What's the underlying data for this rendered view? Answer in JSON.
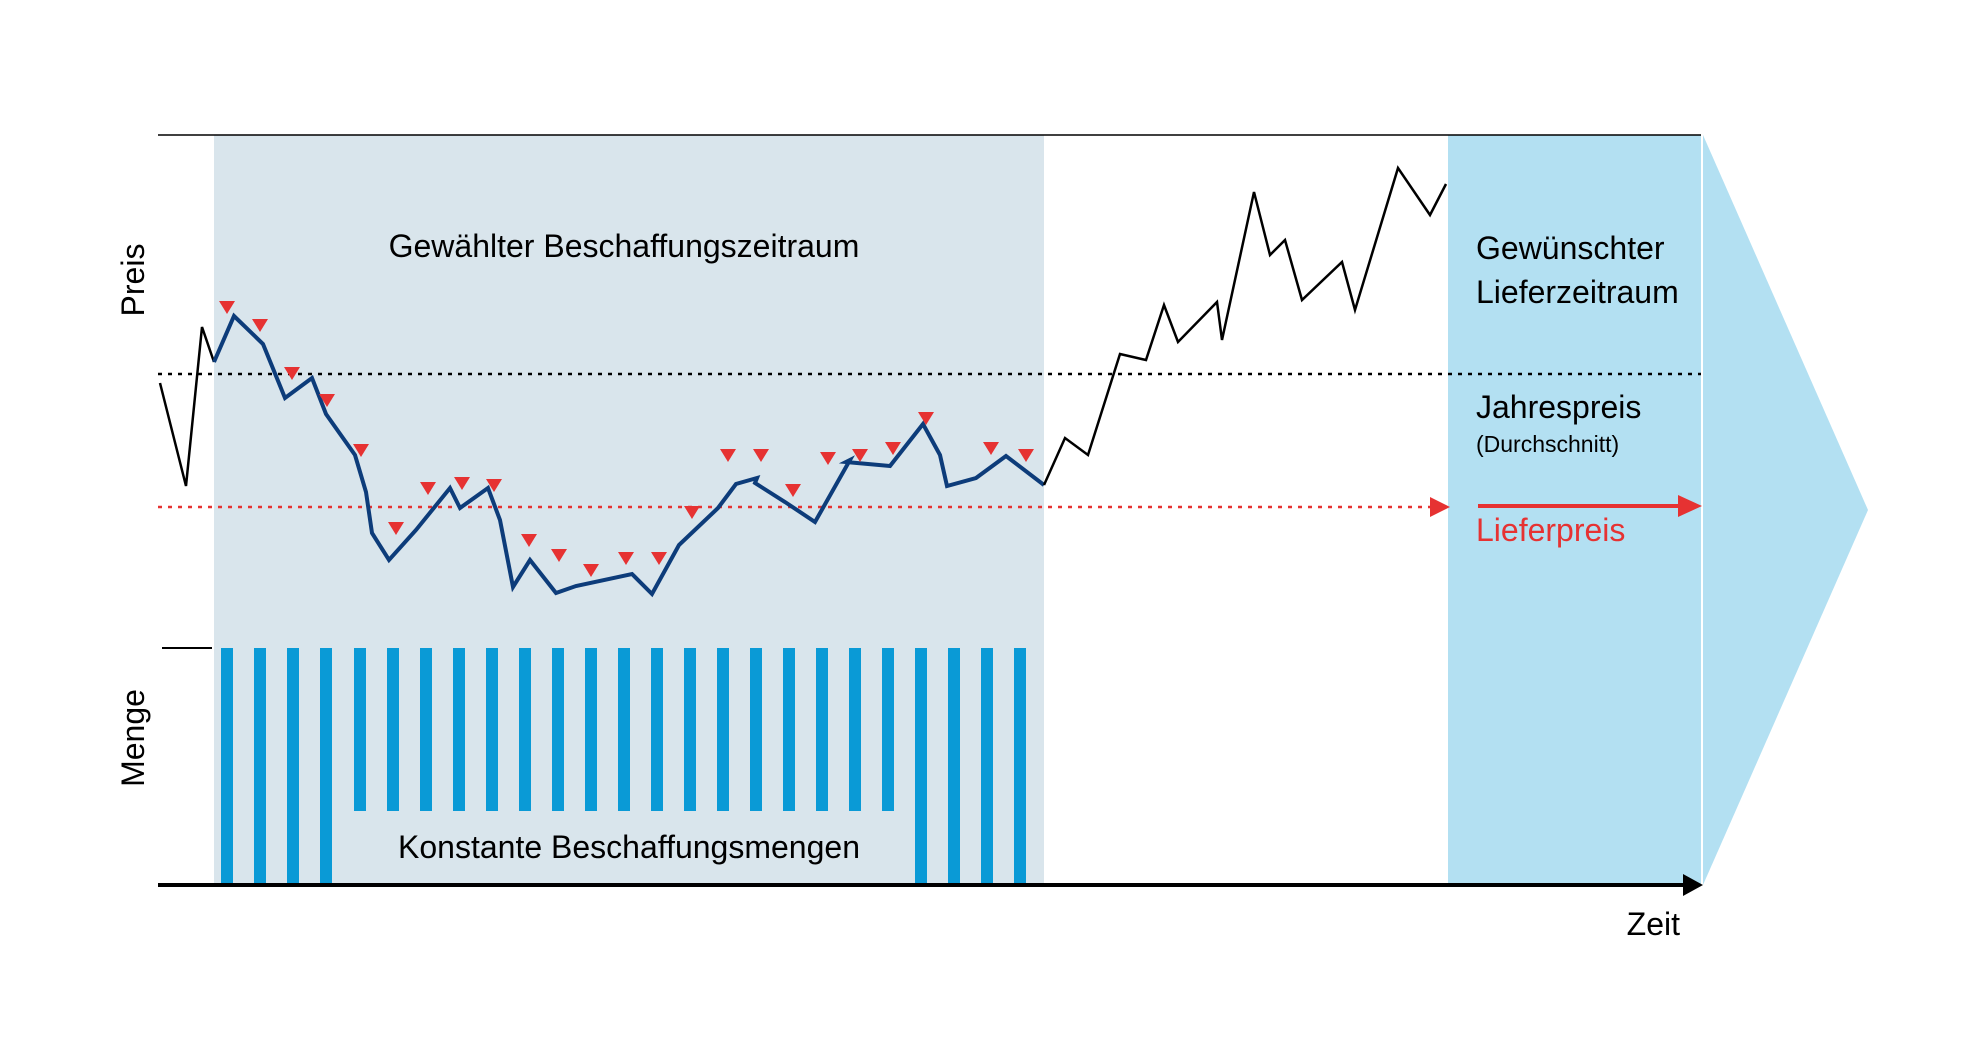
{
  "labels": {
    "y_top": "Preis",
    "y_bottom": "Menge",
    "x": "Zeit",
    "procurement_period": "Gewählter Beschaffungszeitraum",
    "delivery_period_line1": "Gewünschter",
    "delivery_period_line2": "Lieferzeitraum",
    "annual_price": "Jahrespreis",
    "annual_price_note": "(Durchschnitt)",
    "delivery_price": "Lieferpreis",
    "constant_quantities": "Konstante Beschaffungsmengen"
  },
  "colors": {
    "procurement_bg": "#d9e5ec",
    "delivery_bg": "#b3e0f2",
    "arrow_bg": "#b3e0f2",
    "price_line_procurement": "#0d3c7a",
    "price_line_other": "#000000",
    "buy_marker": "#e63232",
    "delivery_price_line": "#e63232",
    "annual_price_line": "#000000",
    "quantity_bars": "#0a9ad6",
    "axis": "#000000"
  }
}
